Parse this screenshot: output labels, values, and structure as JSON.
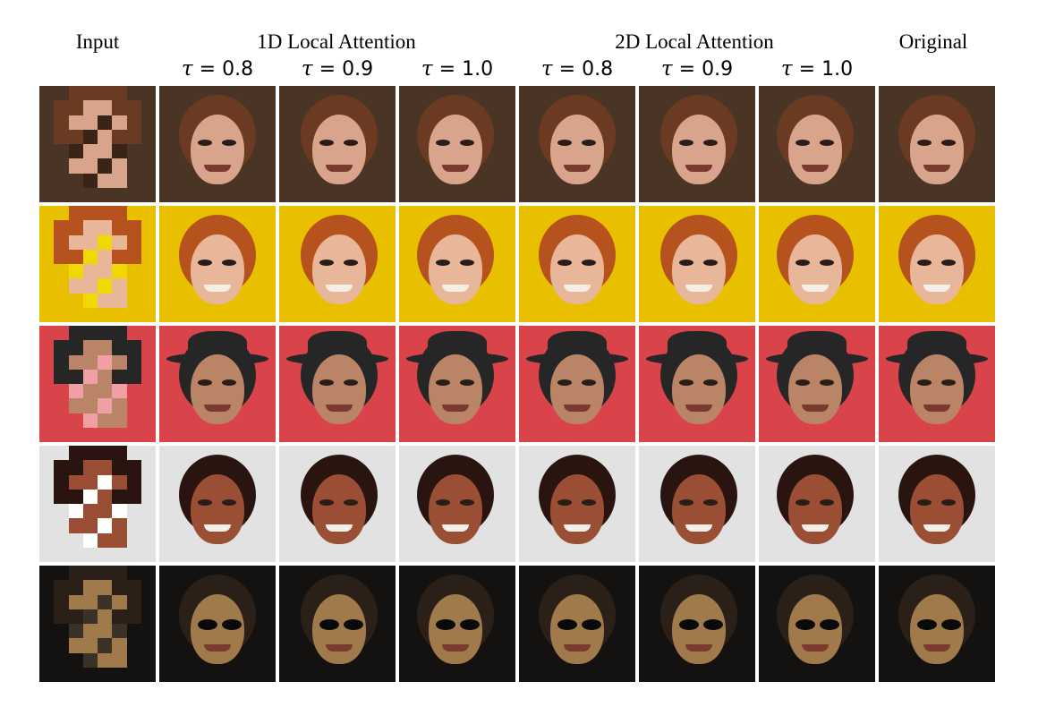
{
  "headers": {
    "input": "Input",
    "group1": "1D Local Attention",
    "group2": "2D Local Attention",
    "original": "Original"
  },
  "tau_symbol": "τ",
  "tau_values": [
    "0.8",
    "0.9",
    "1.0",
    "0.8",
    "0.9",
    "1.0"
  ],
  "columns": [
    "input",
    "1d-0.8",
    "1d-0.9",
    "1d-1.0",
    "2d-0.8",
    "2d-0.9",
    "2d-1.0",
    "original"
  ],
  "rows": [
    {
      "name": "woman-brown-hair",
      "bg": "#4a3426",
      "skin": "#d9a48c",
      "hair": "#6a3a22",
      "accent": "#3a2418"
    },
    {
      "name": "woman-red-hair",
      "bg": "#e8c000",
      "skin": "#e8b79a",
      "hair": "#b5521e",
      "accent": "#f0d800"
    },
    {
      "name": "man-black-hat",
      "bg": "#d9434a",
      "skin": "#b98566",
      "hair": "#262626",
      "accent": "#f0a0a4"
    },
    {
      "name": "man-smiling-bald",
      "bg": "#e2e2e2",
      "skin": "#9a4e34",
      "hair": "#2a1410",
      "accent": "#ffffff"
    },
    {
      "name": "man-sunglasses",
      "bg": "#141210",
      "skin": "#a07a4a",
      "hair": "#2a2018",
      "accent": "#3a3226"
    }
  ]
}
